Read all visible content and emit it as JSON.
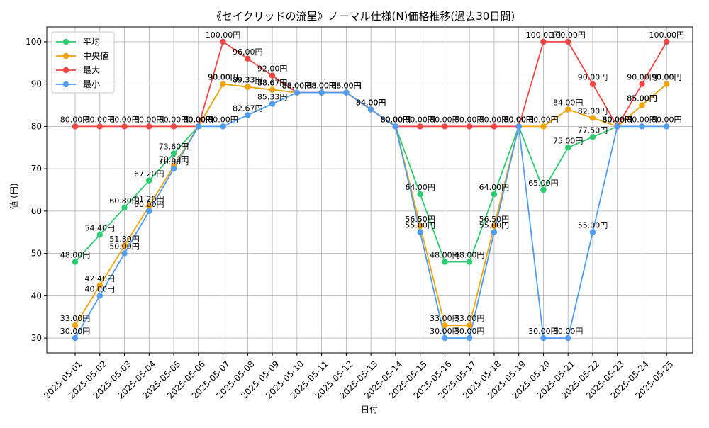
{
  "chart_data": {
    "type": "line",
    "title": "《セイクリッドの流星》ノーマル仕様(N)価格推移(過去30日間)",
    "xlabel": "日付",
    "ylabel": "値 (円)",
    "ylim": [
      26.5,
      103.5
    ],
    "yticks": [
      30,
      40,
      50,
      60,
      70,
      80,
      90,
      100
    ],
    "grid": true,
    "legend_position": "top-left",
    "label_suffix": "円",
    "categories": [
      "2025-05-01",
      "2025-05-02",
      "2025-05-03",
      "2025-05-04",
      "2025-05-05",
      "2025-05-06",
      "2025-05-07",
      "2025-05-08",
      "2025-05-09",
      "2025-05-10",
      "2025-05-11",
      "2025-05-12",
      "2025-05-13",
      "2025-05-14",
      "2025-05-15",
      "2025-05-16",
      "2025-05-17",
      "2025-05-18",
      "2025-05-19",
      "2025-05-20",
      "2025-05-21",
      "2025-05-22",
      "2025-05-23",
      "2025-05-24",
      "2025-05-25"
    ],
    "series": [
      {
        "name": "平均",
        "color": "#2ecc71",
        "values": [
          48.0,
          54.4,
          60.8,
          67.2,
          73.6,
          80.0,
          90.0,
          89.33,
          88.67,
          88.0,
          88.0,
          88.0,
          84.0,
          80.0,
          64.0,
          48.0,
          48.0,
          64.0,
          80.0,
          65.0,
          75.0,
          77.5,
          80.0,
          85.0,
          90.0
        ]
      },
      {
        "name": "中央値",
        "color": "#f5a30a",
        "values": [
          33.0,
          42.4,
          51.8,
          61.2,
          70.6,
          80.0,
          90.0,
          89.33,
          88.67,
          88.0,
          88.0,
          88.0,
          84.0,
          80.0,
          56.5,
          33.0,
          33.0,
          56.5,
          80.0,
          80.0,
          84.0,
          82.0,
          80.0,
          85.0,
          90.0
        ]
      },
      {
        "name": "最大",
        "color": "#ef4444",
        "values": [
          80.0,
          80.0,
          80.0,
          80.0,
          80.0,
          80.0,
          100.0,
          96.0,
          92.0,
          88.0,
          88.0,
          88.0,
          84.0,
          80.0,
          80.0,
          80.0,
          80.0,
          80.0,
          80.0,
          100.0,
          100.0,
          90.0,
          80.0,
          90.0,
          100.0
        ]
      },
      {
        "name": "最小",
        "color": "#4f9cf0",
        "values": [
          30.0,
          40.0,
          50.0,
          60.0,
          70.0,
          80.0,
          80.0,
          82.67,
          85.33,
          88.0,
          88.0,
          88.0,
          84.0,
          80.0,
          55.0,
          30.0,
          30.0,
          55.0,
          80.0,
          30.0,
          30.0,
          55.0,
          80.0,
          80.0,
          80.0
        ]
      }
    ]
  }
}
